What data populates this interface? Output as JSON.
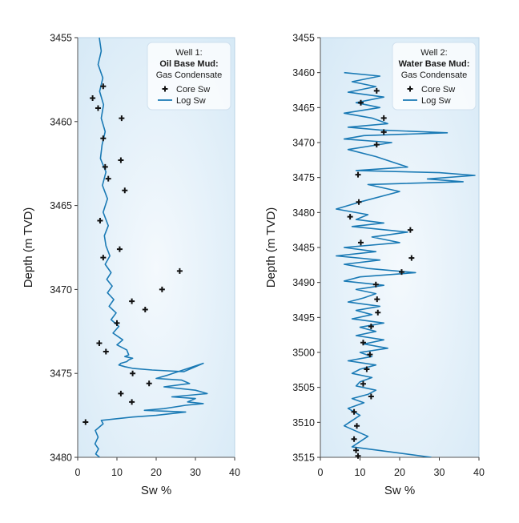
{
  "chart_data": [
    {
      "type": "scatter",
      "ylabel": "Depth (m TVD)",
      "xlabel": "Sw %",
      "xlim": [
        0,
        40
      ],
      "ylim": [
        3455,
        3480
      ],
      "y_inverted": true,
      "xticks": [
        0,
        10,
        20,
        30,
        40
      ],
      "yticks": [
        3455,
        3460,
        3465,
        3470,
        3475,
        3480
      ],
      "grid": false,
      "legend": {
        "position": "top-right",
        "title": "Well 1:",
        "mud": "Oil Base Mud:",
        "mud_color": "#c0392b",
        "fluid": "Gas Condensate",
        "core_label": "Core Sw",
        "log_label": "Log Sw"
      },
      "colors": {
        "log": "#1a7ab5",
        "core": "#111111",
        "plot_bg_edge": "#d6e9f6",
        "plot_bg_center": "#f4f9fd"
      },
      "series": [
        {
          "name": "Core Sw",
          "kind": "points",
          "x": [
            6.5,
            3.8,
            5.2,
            11.2,
            6.5,
            11,
            7,
            7.8,
            12,
            5.7,
            6.5,
            10.7,
            26,
            21.5,
            13.8,
            17.2,
            10,
            5.5,
            7.2,
            14,
            18.2,
            11,
            13.8,
            2
          ],
          "y": [
            3457.9,
            3458.6,
            3459.2,
            3459.8,
            3461.0,
            3462.3,
            3462.7,
            3463.4,
            3464.1,
            3465.9,
            3468.1,
            3467.6,
            3468.9,
            3470.0,
            3470.7,
            3471.2,
            3472.0,
            3473.2,
            3473.7,
            3475.0,
            3475.6,
            3476.2,
            3476.7,
            3477.9
          ]
        },
        {
          "name": "Log Sw",
          "kind": "line",
          "x": [
            5.5,
            6,
            5.2,
            6.4,
            5.6,
            6.6,
            6,
            7,
            6.2,
            5.8,
            7.2,
            6.3,
            7.6,
            6.5,
            7.8,
            6.8,
            7.2,
            8.2,
            7,
            8.5,
            7.4,
            8.8,
            7.6,
            9.2,
            8,
            9.8,
            8.5,
            10.5,
            9,
            11.5,
            10,
            12.5,
            13,
            12,
            14,
            13,
            12.5,
            11,
            10.5,
            12,
            14,
            19,
            27,
            32,
            23,
            20,
            26.5,
            28.5,
            22,
            30,
            33,
            24,
            30,
            28,
            32,
            27.5,
            22,
            17,
            27.5,
            20,
            14,
            6,
            6.5,
            4.5,
            5.2,
            4.4,
            5.3,
            4.6,
            5.6
          ],
          "y": [
            3455,
            3455.8,
            3456.6,
            3457.4,
            3458.2,
            3459.0,
            3459.8,
            3460.6,
            3461.4,
            3462.2,
            3463.0,
            3463.8,
            3464.6,
            3465.4,
            3466.2,
            3466.8,
            3467.4,
            3468.0,
            3468.5,
            3469.0,
            3469.4,
            3469.8,
            3470.2,
            3470.6,
            3471.0,
            3471.4,
            3471.8,
            3472.2,
            3472.6,
            3473.0,
            3473.3,
            3473.6,
            3473.9,
            3474.0,
            3474.1,
            3474.2,
            3474.3,
            3474.4,
            3474.5,
            3474.6,
            3474.7,
            3474.8,
            3474.9,
            3474.4,
            3475.1,
            3475.3,
            3475.4,
            3475.6,
            3475.8,
            3476.0,
            3476.2,
            3476.4,
            3476.5,
            3476.7,
            3476.8,
            3476.9,
            3477.1,
            3477.2,
            3477.3,
            3477.5,
            3477.6,
            3477.8,
            3478.0,
            3478.4,
            3478.8,
            3479.2,
            3479.5,
            3479.8,
            3480
          ]
        }
      ]
    },
    {
      "type": "scatter",
      "ylabel": "Depth (m TVD)",
      "xlabel": "Sw %",
      "xlim": [
        0,
        40
      ],
      "ylim": [
        3455,
        3515
      ],
      "y_inverted": true,
      "xticks": [
        0,
        10,
        20,
        30,
        40
      ],
      "yticks": [
        3455,
        3460,
        3465,
        3470,
        3475,
        3480,
        3485,
        3490,
        3495,
        3500,
        3505,
        3510,
        3515
      ],
      "grid": false,
      "legend": {
        "position": "top-right",
        "title": "Well 2:",
        "mud": "Water Base Mud:",
        "mud_color": "#7a3fa8",
        "fluid": "Gas Condensate",
        "core_label": "Core Sw",
        "log_label": "Log Sw"
      },
      "colors": {
        "log": "#1a7ab5",
        "core": "#111111",
        "plot_bg_edge": "#d6e9f6",
        "plot_bg_center": "#f4f9fd"
      },
      "series": [
        {
          "name": "Core Sw",
          "kind": "points",
          "x": [
            14.2,
            10.2,
            16,
            16,
            14.2,
            9.5,
            9.7,
            7.5,
            22.7,
            10.2,
            23,
            20.5,
            14,
            14.3,
            14.5,
            12.8,
            10.8,
            12.5,
            11.7,
            10.8,
            12.8,
            8.5,
            9.2,
            8.5,
            9,
            9.5
          ],
          "y": [
            3462.6,
            3464.3,
            3466.5,
            3468.5,
            3470.3,
            3474.6,
            3478.5,
            3480.6,
            3482.5,
            3484.3,
            3486.5,
            3488.5,
            3490.3,
            3492.4,
            3494.3,
            3496.3,
            3498.6,
            3500.3,
            3502.4,
            3504.5,
            3506.3,
            3508.5,
            3510.5,
            3512.4,
            3514,
            3514.8
          ]
        },
        {
          "name": "Log Sw",
          "kind": "line",
          "x": [
            6,
            15,
            8,
            14,
            7,
            16,
            9,
            15,
            6,
            13,
            17,
            7,
            15,
            32,
            11,
            6,
            18,
            7,
            14,
            22,
            9,
            30,
            39,
            27,
            36,
            12,
            20,
            10,
            4,
            12,
            9,
            16,
            8,
            22,
            13,
            20,
            6,
            14,
            4,
            15,
            6,
            12,
            24,
            10,
            6,
            16,
            9,
            14,
            11,
            7,
            15,
            9,
            13,
            8,
            16,
            10,
            14,
            9,
            16,
            11,
            17,
            10,
            13,
            7,
            14,
            10,
            8,
            13,
            10,
            9,
            14,
            12,
            8,
            11,
            7,
            10,
            6,
            12,
            8,
            28
          ],
          "y": [
            3460,
            3460.5,
            3461.3,
            3462.0,
            3462.8,
            3463.5,
            3464.3,
            3465.0,
            3465.8,
            3466.5,
            3467.3,
            3467.8,
            3468.2,
            3468.6,
            3469.0,
            3469.5,
            3470.0,
            3471.0,
            3472.0,
            3473.5,
            3474.0,
            3474.3,
            3474.7,
            3475.2,
            3475.6,
            3476.0,
            3477.0,
            3478.5,
            3479.5,
            3480.3,
            3481.0,
            3481.5,
            3482.0,
            3482.8,
            3483.5,
            3484.3,
            3485.0,
            3485.6,
            3486.2,
            3486.8,
            3487.4,
            3488.0,
            3488.6,
            3489.2,
            3489.8,
            3490.4,
            3491.0,
            3491.6,
            3492.2,
            3492.8,
            3493.4,
            3494.0,
            3494.6,
            3495.2,
            3495.8,
            3496.4,
            3497.0,
            3497.6,
            3498.2,
            3498.8,
            3499.4,
            3500.0,
            3500.6,
            3501.2,
            3501.8,
            3502.4,
            3503.0,
            3503.6,
            3504.2,
            3504.8,
            3505.4,
            3506.0,
            3506.6,
            3507.2,
            3508.0,
            3509.0,
            3510.5,
            3512.0,
            3513.5,
            3515
          ]
        }
      ]
    }
  ]
}
